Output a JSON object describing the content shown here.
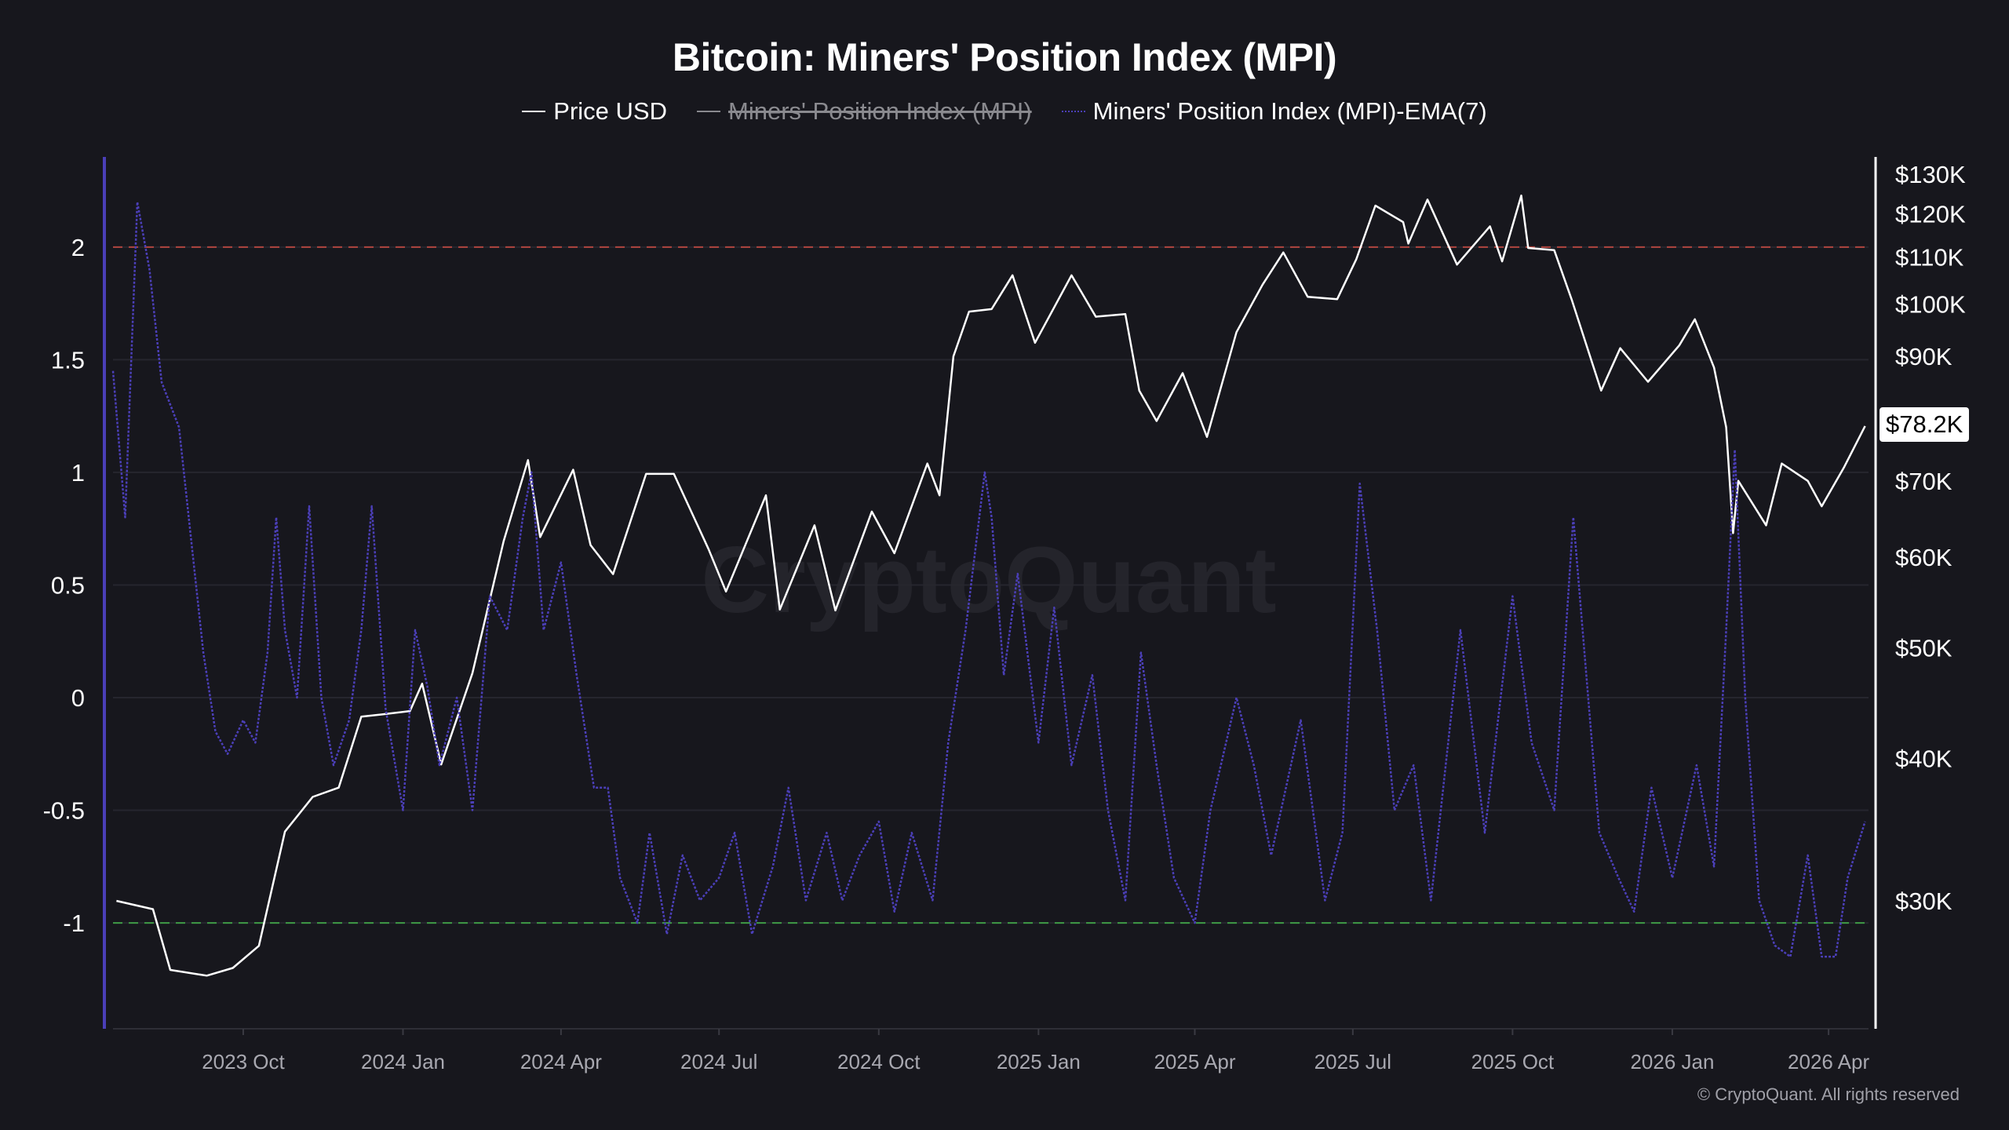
{
  "chart_data": {
    "type": "line",
    "title": "Bitcoin: Miners' Position Index (MPI)",
    "legend": [
      {
        "name": "Price USD",
        "color": "#ffffff",
        "visible": true
      },
      {
        "name": "Miners' Position Index (MPI)",
        "color": "#8a8a8f",
        "visible": false
      },
      {
        "name": "Miners' Position Index (MPI)-EMA(7)",
        "color": "#4b3fb8",
        "visible": true
      }
    ],
    "legend_placement": "top-center",
    "x_range": [
      "2023-07-18",
      "2026-04-24"
    ],
    "x_ticks": [
      "2023 Oct",
      "2024 Jan",
      "2024 Apr",
      "2024 Jul",
      "2024 Oct",
      "2025 Jan",
      "2025 Apr",
      "2025 Jul",
      "2025 Oct",
      "2026 Jan",
      "2026 Apr"
    ],
    "x_tick_dates": [
      "2023-10-01",
      "2024-01-01",
      "2024-04-01",
      "2024-07-01",
      "2024-10-01",
      "2025-01-01",
      "2025-04-01",
      "2025-07-01",
      "2025-10-01",
      "2026-01-01",
      "2026-04-01"
    ],
    "y_left": {
      "ticks": [
        "2",
        "1.5",
        "1",
        "0.5",
        "0",
        "-0.5",
        "-1"
      ],
      "tick_values": [
        2,
        1.5,
        1,
        0.5,
        0,
        -0.5,
        -1
      ],
      "range": [
        -1.47,
        2.4
      ],
      "grid": true
    },
    "y_right": {
      "scale": "log",
      "ticks": [
        "$130K",
        "$120K",
        "$110K",
        "$100K",
        "$90K",
        "$70K",
        "$60K",
        "$50K",
        "$40K",
        "$30K"
      ],
      "tick_values": [
        130000,
        120000,
        110000,
        100000,
        90000,
        70000,
        60000,
        50000,
        40000,
        30000
      ]
    },
    "reference_lines": [
      {
        "value": 2,
        "color": "#b0453f",
        "style": "dashed"
      },
      {
        "value": -1,
        "color": "#3f9a45",
        "style": "dashed"
      }
    ],
    "current_price_label": "$78.2K",
    "series": [
      {
        "name": "Price USD",
        "axis": "right",
        "color": "#ffffff",
        "points": [
          [
            "2023-07-20",
            30000
          ],
          [
            "2023-08-10",
            29500
          ],
          [
            "2023-08-20",
            26100
          ],
          [
            "2023-09-10",
            25800
          ],
          [
            "2023-09-25",
            26200
          ],
          [
            "2023-10-10",
            27400
          ],
          [
            "2023-10-25",
            34500
          ],
          [
            "2023-11-10",
            37000
          ],
          [
            "2023-11-25",
            37700
          ],
          [
            "2023-12-08",
            43500
          ],
          [
            "2023-12-20",
            43700
          ],
          [
            "2024-01-05",
            44000
          ],
          [
            "2024-01-12",
            46500
          ],
          [
            "2024-01-23",
            39500
          ],
          [
            "2024-02-10",
            47500
          ],
          [
            "2024-02-28",
            62000
          ],
          [
            "2024-03-13",
            73000
          ],
          [
            "2024-03-20",
            62500
          ],
          [
            "2024-04-08",
            71600
          ],
          [
            "2024-04-18",
            61500
          ],
          [
            "2024-05-01",
            58000
          ],
          [
            "2024-05-20",
            71000
          ],
          [
            "2024-06-05",
            71000
          ],
          [
            "2024-06-25",
            61000
          ],
          [
            "2024-07-05",
            56000
          ],
          [
            "2024-07-28",
            68000
          ],
          [
            "2024-08-05",
            54000
          ],
          [
            "2024-08-25",
            64000
          ],
          [
            "2024-09-06",
            53900
          ],
          [
            "2024-09-27",
            65800
          ],
          [
            "2024-10-10",
            60500
          ],
          [
            "2024-10-29",
            72500
          ],
          [
            "2024-11-05",
            68000
          ],
          [
            "2024-11-13",
            90000
          ],
          [
            "2024-11-22",
            98500
          ],
          [
            "2024-12-05",
            99000
          ],
          [
            "2024-12-17",
            106000
          ],
          [
            "2024-12-30",
            92500
          ],
          [
            "2025-01-20",
            106000
          ],
          [
            "2025-02-03",
            97500
          ],
          [
            "2025-02-20",
            98000
          ],
          [
            "2025-02-28",
            84000
          ],
          [
            "2025-03-10",
            79000
          ],
          [
            "2025-03-25",
            87000
          ],
          [
            "2025-04-08",
            76500
          ],
          [
            "2025-04-25",
            94500
          ],
          [
            "2025-05-10",
            104000
          ],
          [
            "2025-05-22",
            111000
          ],
          [
            "2025-06-05",
            101500
          ],
          [
            "2025-06-22",
            101000
          ],
          [
            "2025-07-03",
            109500
          ],
          [
            "2025-07-14",
            122000
          ],
          [
            "2025-07-30",
            118000
          ],
          [
            "2025-08-02",
            113000
          ],
          [
            "2025-08-13",
            123500
          ],
          [
            "2025-08-30",
            108300
          ],
          [
            "2025-09-18",
            117000
          ],
          [
            "2025-09-25",
            109000
          ],
          [
            "2025-10-06",
            124500
          ],
          [
            "2025-10-10",
            112000
          ],
          [
            "2025-10-25",
            111500
          ],
          [
            "2025-11-04",
            101000
          ],
          [
            "2025-11-21",
            84000
          ],
          [
            "2025-12-02",
            91500
          ],
          [
            "2025-12-18",
            85500
          ],
          [
            "2026-01-05",
            92000
          ],
          [
            "2026-01-14",
            97000
          ],
          [
            "2026-01-25",
            88000
          ],
          [
            "2026-02-01",
            78000
          ],
          [
            "2026-02-05",
            63000
          ],
          [
            "2026-02-08",
            70000
          ],
          [
            "2026-02-24",
            64000
          ],
          [
            "2026-03-05",
            72500
          ],
          [
            "2026-03-20",
            70000
          ],
          [
            "2026-03-28",
            66500
          ],
          [
            "2026-04-10",
            72000
          ],
          [
            "2026-04-22",
            78200
          ]
        ]
      },
      {
        "name": "Miners' Position Index (MPI)-EMA(7)",
        "axis": "left",
        "color": "#4b3fb8",
        "points": [
          [
            "2023-07-18",
            1.45
          ],
          [
            "2023-07-25",
            0.8
          ],
          [
            "2023-08-01",
            2.2
          ],
          [
            "2023-08-08",
            1.9
          ],
          [
            "2023-08-15",
            1.4
          ],
          [
            "2023-08-25",
            1.2
          ],
          [
            "2023-09-01",
            0.7
          ],
          [
            "2023-09-08",
            0.2
          ],
          [
            "2023-09-15",
            -0.15
          ],
          [
            "2023-09-22",
            -0.25
          ],
          [
            "2023-10-01",
            -0.1
          ],
          [
            "2023-10-08",
            -0.2
          ],
          [
            "2023-10-15",
            0.2
          ],
          [
            "2023-10-20",
            0.8
          ],
          [
            "2023-10-25",
            0.3
          ],
          [
            "2023-11-01",
            0.0
          ],
          [
            "2023-11-08",
            0.85
          ],
          [
            "2023-11-15",
            0.0
          ],
          [
            "2023-11-22",
            -0.3
          ],
          [
            "2023-12-01",
            -0.1
          ],
          [
            "2023-12-08",
            0.3
          ],
          [
            "2023-12-14",
            0.85
          ],
          [
            "2023-12-22",
            -0.05
          ],
          [
            "2024-01-01",
            -0.5
          ],
          [
            "2024-01-08",
            0.3
          ],
          [
            "2024-01-15",
            0.05
          ],
          [
            "2024-01-22",
            -0.3
          ],
          [
            "2024-02-01",
            0.0
          ],
          [
            "2024-02-10",
            -0.5
          ],
          [
            "2024-02-20",
            0.45
          ],
          [
            "2024-03-01",
            0.3
          ],
          [
            "2024-03-10",
            0.8
          ],
          [
            "2024-03-15",
            1.0
          ],
          [
            "2024-03-22",
            0.3
          ],
          [
            "2024-04-01",
            0.6
          ],
          [
            "2024-04-10",
            0.1
          ],
          [
            "2024-04-20",
            -0.4
          ],
          [
            "2024-04-28",
            -0.4
          ],
          [
            "2024-05-05",
            -0.8
          ],
          [
            "2024-05-15",
            -1.0
          ],
          [
            "2024-05-22",
            -0.6
          ],
          [
            "2024-06-01",
            -1.05
          ],
          [
            "2024-06-10",
            -0.7
          ],
          [
            "2024-06-20",
            -0.9
          ],
          [
            "2024-07-01",
            -0.8
          ],
          [
            "2024-07-10",
            -0.6
          ],
          [
            "2024-07-20",
            -1.05
          ],
          [
            "2024-08-01",
            -0.75
          ],
          [
            "2024-08-10",
            -0.4
          ],
          [
            "2024-08-20",
            -0.9
          ],
          [
            "2024-09-01",
            -0.6
          ],
          [
            "2024-09-10",
            -0.9
          ],
          [
            "2024-09-20",
            -0.7
          ],
          [
            "2024-10-01",
            -0.55
          ],
          [
            "2024-10-10",
            -0.95
          ],
          [
            "2024-10-20",
            -0.6
          ],
          [
            "2024-11-01",
            -0.9
          ],
          [
            "2024-11-10",
            -0.2
          ],
          [
            "2024-11-20",
            0.3
          ],
          [
            "2024-12-01",
            1.0
          ],
          [
            "2024-12-05",
            0.8
          ],
          [
            "2024-12-12",
            0.1
          ],
          [
            "2024-12-20",
            0.55
          ],
          [
            "2025-01-01",
            -0.2
          ],
          [
            "2025-01-10",
            0.4
          ],
          [
            "2025-01-20",
            -0.3
          ],
          [
            "2025-02-01",
            0.1
          ],
          [
            "2025-02-10",
            -0.5
          ],
          [
            "2025-02-20",
            -0.9
          ],
          [
            "2025-03-01",
            0.2
          ],
          [
            "2025-03-10",
            -0.3
          ],
          [
            "2025-03-20",
            -0.8
          ],
          [
            "2025-04-01",
            -1.0
          ],
          [
            "2025-04-10",
            -0.5
          ],
          [
            "2025-04-25",
            0.0
          ],
          [
            "2025-05-05",
            -0.3
          ],
          [
            "2025-05-15",
            -0.7
          ],
          [
            "2025-06-01",
            -0.1
          ],
          [
            "2025-06-15",
            -0.9
          ],
          [
            "2025-06-25",
            -0.6
          ],
          [
            "2025-07-05",
            0.95
          ],
          [
            "2025-07-15",
            0.3
          ],
          [
            "2025-07-25",
            -0.5
          ],
          [
            "2025-08-05",
            -0.3
          ],
          [
            "2025-08-15",
            -0.9
          ],
          [
            "2025-09-01",
            0.3
          ],
          [
            "2025-09-15",
            -0.6
          ],
          [
            "2025-10-01",
            0.45
          ],
          [
            "2025-10-12",
            -0.2
          ],
          [
            "2025-10-25",
            -0.5
          ],
          [
            "2025-11-05",
            0.8
          ],
          [
            "2025-11-20",
            -0.6
          ],
          [
            "2025-12-01",
            -0.8
          ],
          [
            "2025-12-10",
            -0.95
          ],
          [
            "2025-12-20",
            -0.4
          ],
          [
            "2026-01-01",
            -0.8
          ],
          [
            "2026-01-15",
            -0.3
          ],
          [
            "2026-01-25",
            -0.75
          ],
          [
            "2026-02-01",
            0.3
          ],
          [
            "2026-02-06",
            1.1
          ],
          [
            "2026-02-12",
            0.0
          ],
          [
            "2026-02-20",
            -0.9
          ],
          [
            "2026-03-01",
            -1.1
          ],
          [
            "2026-03-10",
            -1.15
          ],
          [
            "2026-03-20",
            -0.7
          ],
          [
            "2026-03-28",
            -1.15
          ],
          [
            "2026-04-05",
            -1.15
          ],
          [
            "2026-04-12",
            -0.8
          ],
          [
            "2026-04-22",
            -0.55
          ]
        ]
      }
    ]
  },
  "watermark": "CryptoQuant",
  "copyright": "© CryptoQuant. All rights reserved"
}
